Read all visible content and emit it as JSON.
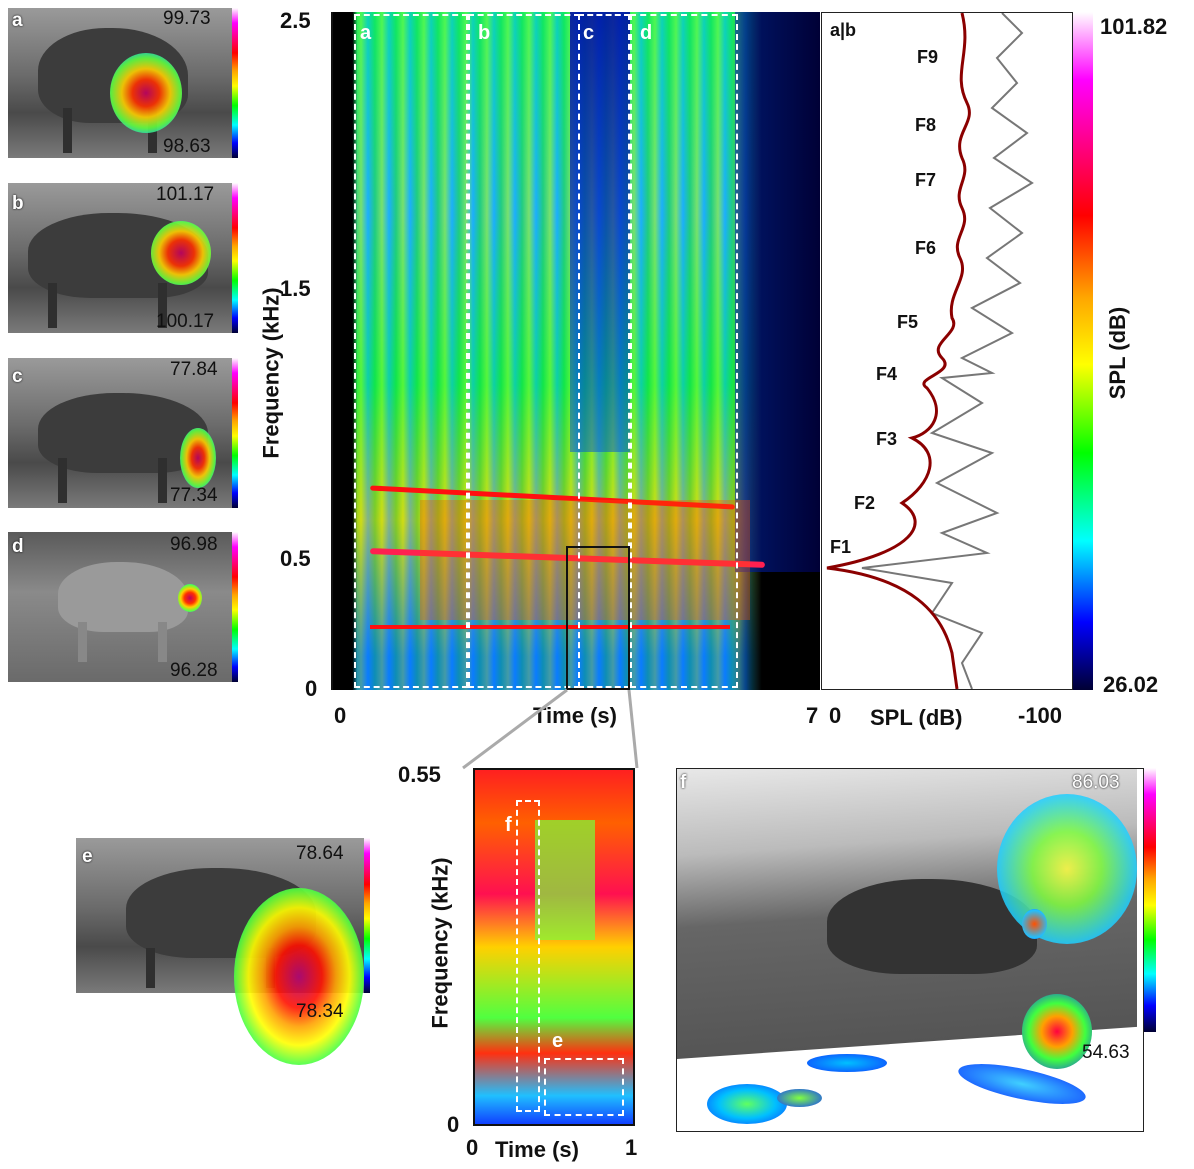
{
  "panels": [
    {
      "letter": "a",
      "top": "99.73",
      "bottom": "98.63"
    },
    {
      "letter": "b",
      "top": "101.17",
      "bottom": "100.17"
    },
    {
      "letter": "c",
      "top": "77.84",
      "bottom": "77.34"
    },
    {
      "letter": "d",
      "top": "96.98",
      "bottom": "96.28"
    },
    {
      "letter": "e",
      "top": "78.64",
      "bottom": "78.34"
    },
    {
      "letter": "f",
      "top": "86.03",
      "bottom": "54.63"
    }
  ],
  "spectrogram": {
    "ylabel": "Frequency (kHz)",
    "xlabel": "Time (s)",
    "yticks": [
      "2.5",
      "1.5",
      "0.5",
      "0"
    ],
    "xticks": [
      "0",
      "7"
    ],
    "segments": [
      "a",
      "b",
      "c",
      "d"
    ]
  },
  "spl": {
    "label": "a|b",
    "xlabel": "SPL (dB)",
    "xticks": [
      "0",
      "-100"
    ],
    "formants": [
      "F1",
      "F2",
      "F3",
      "F4",
      "F5",
      "F6",
      "F7",
      "F8",
      "F9"
    ]
  },
  "colorbar": {
    "label": "SPL (dB)",
    "max": "101.82",
    "min": "26.02"
  },
  "zoom": {
    "ylabel": "Frequency (kHz)",
    "xlabel": "Time (s)",
    "yticks": [
      "0.55",
      "0"
    ],
    "xticks": [
      "0",
      "1"
    ],
    "segments": [
      "f",
      "e"
    ]
  }
}
